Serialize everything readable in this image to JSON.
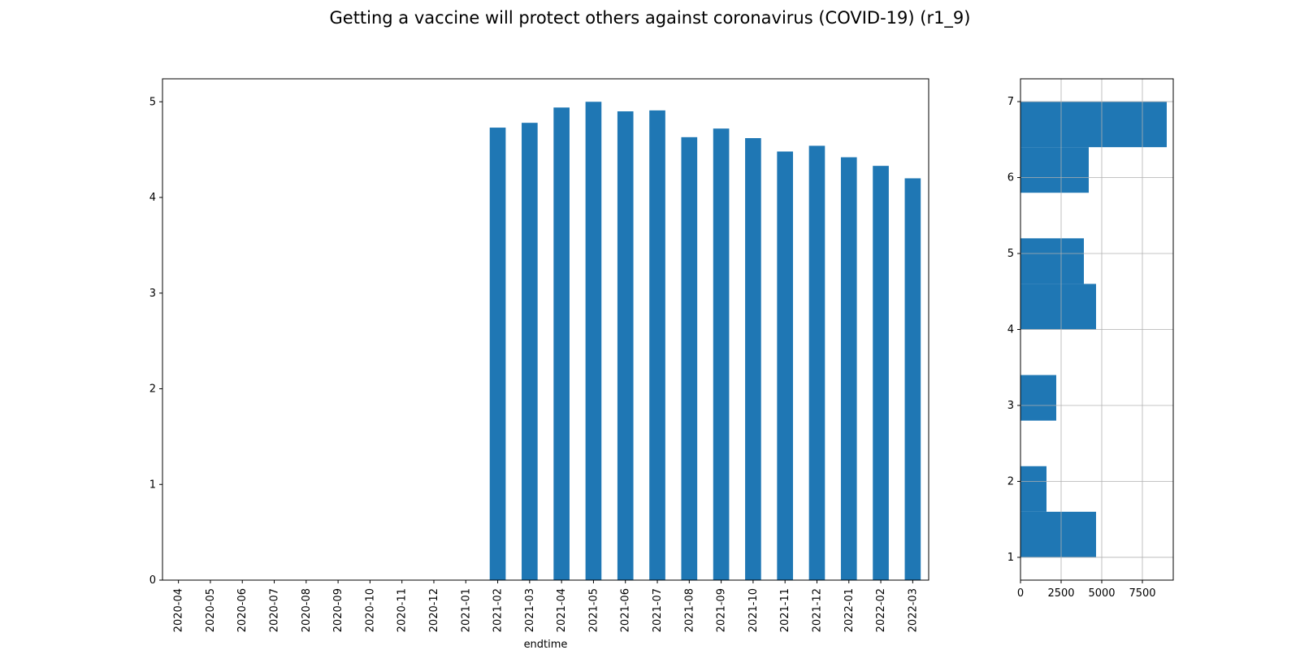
{
  "figure": {
    "title": "Getting a vaccine will protect others against coronavirus (COVID-19) (r1_9)",
    "bar_color": "#1f77b4"
  },
  "chart_data": [
    {
      "type": "bar",
      "title": "",
      "xlabel": "endtime",
      "ylabel": "",
      "ylim": [
        0,
        5.24
      ],
      "yticks": [
        0,
        1,
        2,
        3,
        4,
        5
      ],
      "grid": false,
      "categories": [
        "2020-04",
        "2020-05",
        "2020-06",
        "2020-07",
        "2020-08",
        "2020-09",
        "2020-10",
        "2020-11",
        "2020-12",
        "2021-01",
        "2021-02",
        "2021-03",
        "2021-04",
        "2021-05",
        "2021-06",
        "2021-07",
        "2021-08",
        "2021-09",
        "2021-10",
        "2021-11",
        "2021-12",
        "2022-01",
        "2022-02",
        "2022-03"
      ],
      "values": [
        0,
        0,
        0,
        0,
        0,
        0,
        0,
        0,
        0,
        0,
        4.73,
        4.78,
        4.94,
        5.0,
        4.9,
        4.91,
        4.63,
        4.72,
        4.62,
        4.48,
        4.54,
        4.42,
        4.33,
        4.2
      ]
    },
    {
      "type": "bar",
      "orientation": "horizontal",
      "title": "",
      "xlabel": "",
      "ylabel": "",
      "xlim": [
        0,
        9400
      ],
      "ylim": [
        0.7,
        7.3
      ],
      "xticks": [
        0,
        2500,
        5000,
        7500
      ],
      "yticks": [
        1,
        2,
        3,
        4,
        5,
        6,
        7
      ],
      "grid": true,
      "bins": [
        {
          "from": 1.0,
          "to": 1.6,
          "count": 4650
        },
        {
          "from": 1.6,
          "to": 2.2,
          "count": 1600
        },
        {
          "from": 2.8,
          "to": 3.4,
          "count": 2200
        },
        {
          "from": 4.0,
          "to": 4.6,
          "count": 4650
        },
        {
          "from": 4.6,
          "to": 5.2,
          "count": 3900
        },
        {
          "from": 5.8,
          "to": 6.4,
          "count": 4200
        },
        {
          "from": 6.4,
          "to": 7.0,
          "count": 9000
        }
      ]
    }
  ]
}
